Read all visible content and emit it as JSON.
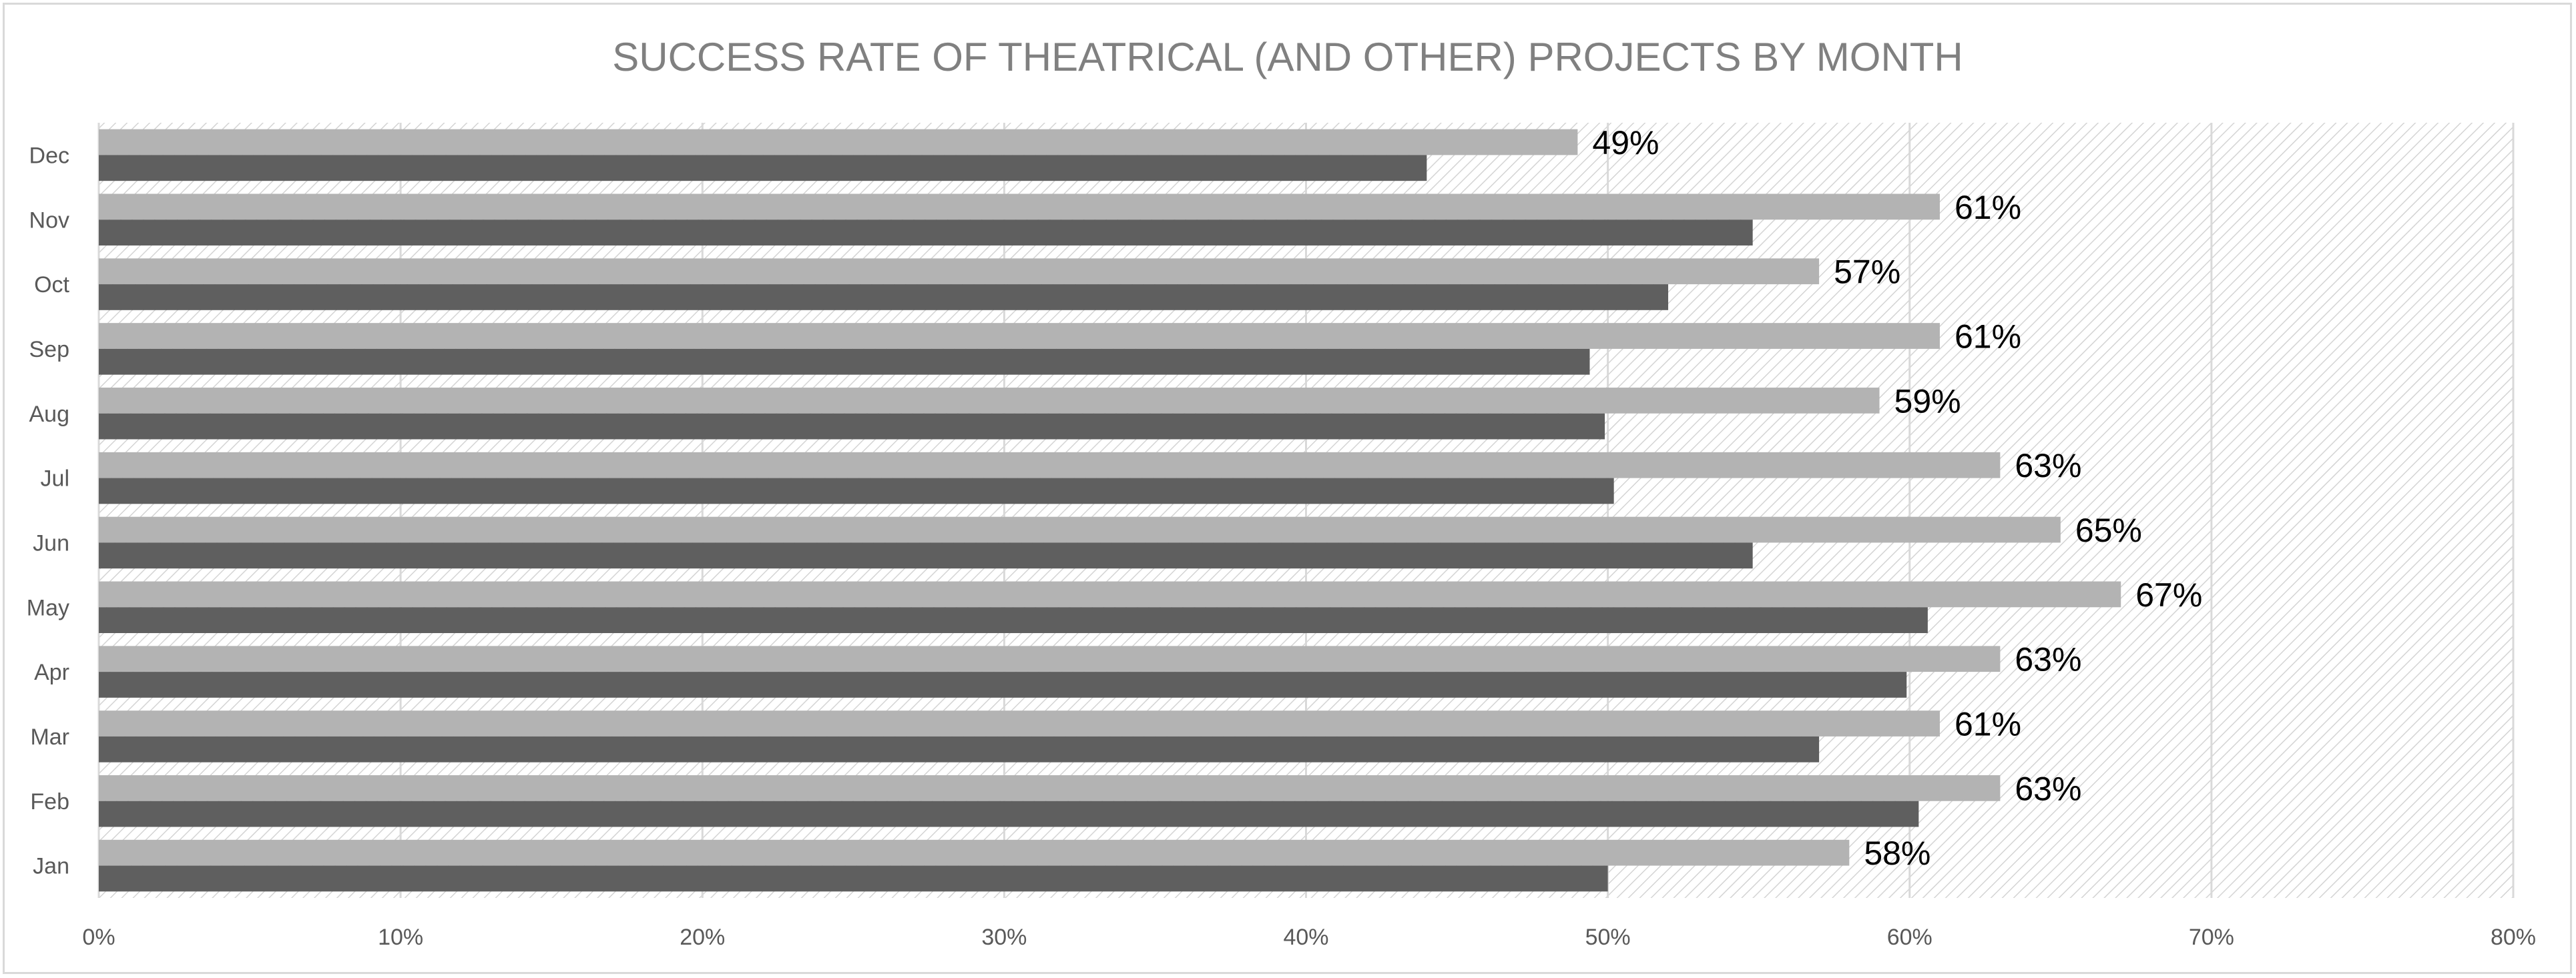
{
  "chart_data": {
    "type": "bar",
    "orientation": "horizontal",
    "title": "SUCCESS RATE OF THEATRICAL (AND OTHER) PROJECTS BY MONTH",
    "categories": [
      "Jan",
      "Feb",
      "Mar",
      "Apr",
      "May",
      "Jun",
      "Jul",
      "Aug",
      "Sep",
      "Oct",
      "Nov",
      "Dec"
    ],
    "series": [
      {
        "color": "#b3b3b3",
        "values": [
          58,
          63,
          61,
          63,
          67,
          65,
          63,
          59,
          61,
          57,
          61,
          49
        ],
        "data_labels": [
          "58%",
          "63%",
          "61%",
          "63%",
          "67%",
          "65%",
          "63%",
          "59%",
          "61%",
          "57%",
          "61%",
          "49%"
        ]
      },
      {
        "color": "#5f5f5f",
        "values": [
          50,
          60.3,
          57,
          59.9,
          60.6,
          54.8,
          50.2,
          49.9,
          49.4,
          52,
          54.8,
          44
        ]
      }
    ],
    "xaxis": {
      "min": 0,
      "max": 80,
      "ticks": [
        0,
        10,
        20,
        30,
        40,
        50,
        60,
        70,
        80
      ],
      "tick_labels": [
        "0%",
        "10%",
        "20%",
        "30%",
        "40%",
        "50%",
        "60%",
        "70%",
        "80%"
      ]
    },
    "plot_background": "diagonal-hatch",
    "grid": true,
    "legend": "none"
  }
}
